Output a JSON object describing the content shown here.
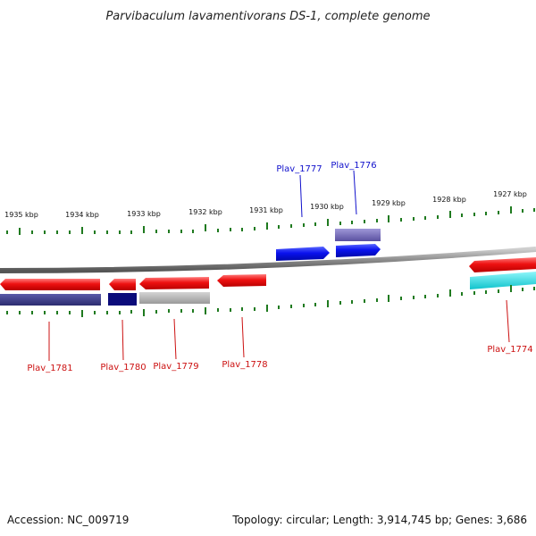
{
  "title": "Parvibaculum lavamentivorans DS-1, complete genome",
  "footer": {
    "accession": "Accession: NC_009719",
    "topology": "Topology: circular; Length: 3,914,745 bp; Genes: 3,686"
  },
  "colors": {
    "gene_red": "#ee1111",
    "gene_blue": "#0a12ee",
    "track_navy": "#3b3b8a",
    "track_dark_navy": "#0b0b7a",
    "track_gray": "#aaaaaa",
    "track_lavender": "#6b61b5",
    "track_cyan": "#15dfe8",
    "tick_green": "#1f7a1f",
    "backbone_gray": "#8c8c8c"
  },
  "tick_labels": {
    "t1935": "1935 kbp",
    "t1934": "1934 kbp",
    "t1933": "1933 kbp",
    "t1932": "1932 kbp",
    "t1931": "1931 kbp",
    "t1930": "1930 kbp",
    "t1929": "1929 kbp",
    "t1928": "1928 kbp",
    "t1927": "1927 kbp"
  },
  "genes": {
    "plav_1777": "Plav_1777",
    "plav_1776": "Plav_1776",
    "plav_1781": "Plav_1781",
    "plav_1780": "Plav_1780",
    "plav_1779": "Plav_1779",
    "plav_1778": "Plav_1778",
    "plav_1774": "Plav_1774"
  }
}
